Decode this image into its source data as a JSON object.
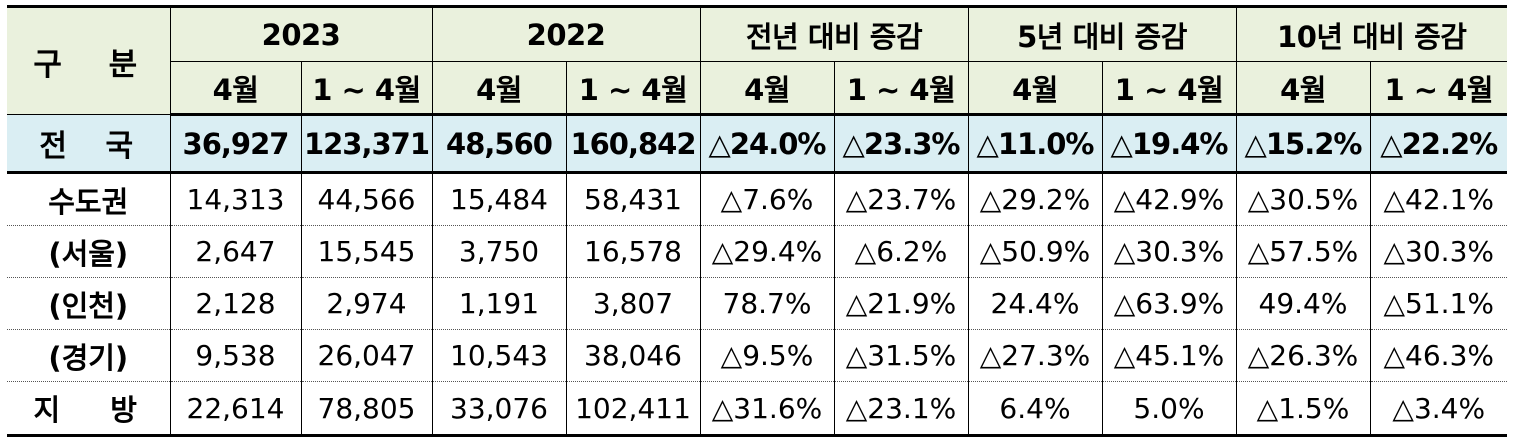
{
  "header": {
    "category": "구 분",
    "groups": [
      "2023",
      "2022",
      "전년 대비 증감",
      "5년 대비 증감",
      "10년 대비 증감"
    ],
    "sub": [
      "4월",
      "1 ~ 4월"
    ]
  },
  "rows": [
    {
      "label": "전 국",
      "values": [
        "36,927",
        "123,371",
        "48,560",
        "160,842",
        "△24.0%",
        "△23.3%",
        "△11.0%",
        "△19.4%",
        "△15.2%",
        "△22.2%"
      ]
    },
    {
      "label": "수도권",
      "values": [
        "14,313",
        "44,566",
        "15,484",
        "58,431",
        "△7.6%",
        "△23.7%",
        "△29.2%",
        "△42.9%",
        "△30.5%",
        "△42.1%"
      ]
    },
    {
      "label": "(서울)",
      "values": [
        "2,647",
        "15,545",
        "3,750",
        "16,578",
        "△29.4%",
        "△6.2%",
        "△50.9%",
        "△30.3%",
        "△57.5%",
        "△30.3%"
      ]
    },
    {
      "label": "(인천)",
      "values": [
        "2,128",
        "2,974",
        "1,191",
        "3,807",
        "78.7%",
        "△21.9%",
        "24.4%",
        "△63.9%",
        "49.4%",
        "△51.1%"
      ]
    },
    {
      "label": "(경기)",
      "values": [
        "9,538",
        "26,047",
        "10,543",
        "38,046",
        "△9.5%",
        "△31.5%",
        "△27.3%",
        "△45.1%",
        "△26.3%",
        "△46.3%"
      ]
    },
    {
      "label": "지 방",
      "values": [
        "22,614",
        "78,805",
        "33,076",
        "102,411",
        "△31.6%",
        "△23.1%",
        "6.4%",
        "5.0%",
        "△1.5%",
        "△3.4%"
      ]
    }
  ],
  "colors": {
    "header_bg": "#eaf1dd",
    "total_bg": "#daeef3"
  }
}
